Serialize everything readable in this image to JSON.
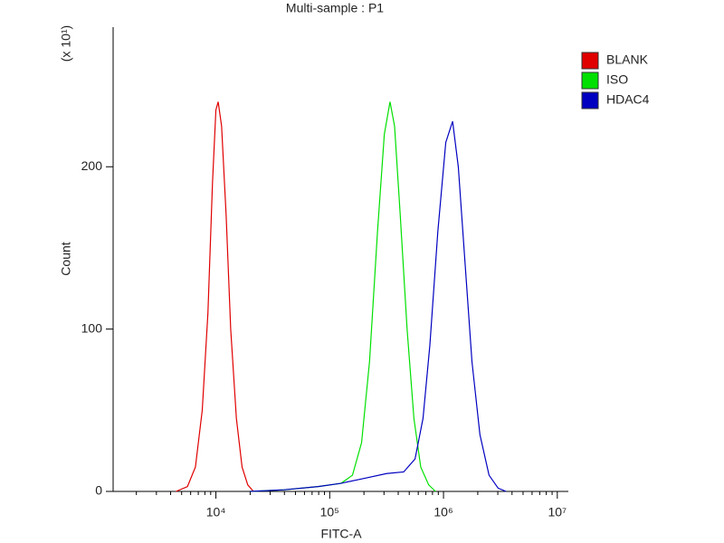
{
  "chart_data": {
    "type": "histogram-overlay",
    "title": "Multi-sample : P1",
    "xlabel": "FITC-A",
    "ylabel": "Count",
    "y_multiplier": "(x 10¹)",
    "xscale": "log",
    "xlim": [
      1250,
      12500000
    ],
    "xticks": [
      {
        "value": 10000,
        "label": "10⁴"
      },
      {
        "value": 100000,
        "label": "10⁵"
      },
      {
        "value": 1000000,
        "label": "10⁶"
      },
      {
        "value": 10000000,
        "label": "10⁷"
      }
    ],
    "ylim": [
      0,
      286
    ],
    "yticks": [
      0,
      100,
      200
    ],
    "legend": "right",
    "series": [
      {
        "name": "BLANK",
        "color": "#e00000",
        "x": [
          4467,
          5623,
          6607,
          7586,
          8511,
          9333,
          10000,
          10471,
          11220,
          12303,
          13490,
          15136,
          16982,
          19055,
          21380
        ],
        "values": [
          0,
          3,
          15,
          50,
          110,
          190,
          235,
          240,
          225,
          170,
          100,
          45,
          15,
          4,
          0
        ]
      },
      {
        "name": "ISO",
        "color": "#00e000",
        "x": [
          19953,
          39811,
          79433,
          125893,
          158489,
          190546,
          223872,
          263027,
          301995,
          338844,
          371535,
          416869,
          478630,
          549541,
          630957,
          741310,
          851138
        ],
        "values": [
          0,
          1,
          3,
          5,
          10,
          30,
          80,
          160,
          220,
          240,
          225,
          170,
          100,
          45,
          15,
          4,
          0
        ]
      },
      {
        "name": "HDAC4",
        "color": "#0000c0",
        "x": [
          19953,
          39811,
          79433,
          125893,
          199526,
          316228,
          446684,
          562341,
          660693,
          758578,
          891251,
          1047129,
          1202264,
          1348963,
          1548817,
          1778279,
          2089296,
          2511886,
          3019952,
          3548134
        ],
        "values": [
          0,
          1,
          3,
          5,
          8,
          11,
          12,
          20,
          45,
          90,
          160,
          215,
          228,
          200,
          140,
          80,
          35,
          10,
          2,
          0
        ]
      }
    ]
  }
}
